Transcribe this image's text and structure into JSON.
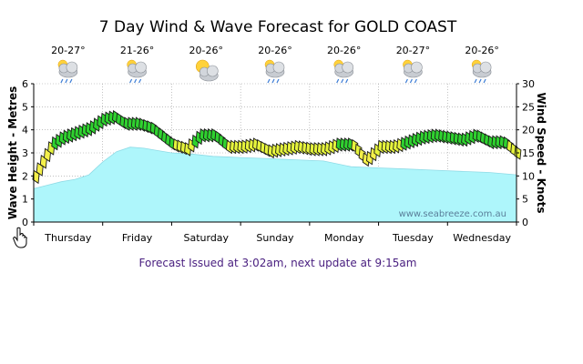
{
  "page": {
    "footer": "Forecast Issued at 3:02am, next update at 9:15am"
  },
  "chart_data": {
    "type": "area",
    "title": "7 Day Wind & Wave Forecast for GOLD COAST",
    "watermark": "www.seabreeze.com.au",
    "ylabel": "Wave Height - Metres",
    "y2label": "Wind Speed - Knots",
    "ylim": [
      0,
      6
    ],
    "y2lim": [
      0,
      30
    ],
    "yticks": [
      0,
      1,
      2,
      3,
      4,
      5,
      6
    ],
    "y2ticks": [
      0,
      5,
      10,
      15,
      20,
      25,
      30
    ],
    "grid": true,
    "days": [
      {
        "name": "Thursday",
        "temp": "20-27°",
        "icon": "storm-cloud-icon"
      },
      {
        "name": "Friday",
        "temp": "21-26°",
        "icon": "storm-cloud-icon"
      },
      {
        "name": "Saturday",
        "temp": "20-26°",
        "icon": "partly-cloudy-icon"
      },
      {
        "name": "Sunday",
        "temp": "20-26°",
        "icon": "storm-cloud-icon"
      },
      {
        "name": "Monday",
        "temp": "20-26°",
        "icon": "storm-cloud-icon"
      },
      {
        "name": "Tuesday",
        "temp": "20-27°",
        "icon": "storm-cloud-icon"
      },
      {
        "name": "Wednesday",
        "temp": "20-26°",
        "icon": "storm-cloud-icon"
      }
    ],
    "series": [
      {
        "name": "Wave Height",
        "axis": "left",
        "x": [
          0,
          0.2,
          0.4,
          0.6,
          0.8,
          1.0,
          1.2,
          1.4,
          1.6,
          1.8,
          2.0,
          2.3,
          2.6,
          3.0,
          3.4,
          3.8,
          4.2,
          4.6,
          5.0,
          5.4,
          5.8,
          6.2,
          6.6,
          7.0
        ],
        "values": [
          1.45,
          1.6,
          1.75,
          1.85,
          2.05,
          2.6,
          3.05,
          3.25,
          3.2,
          3.1,
          3.0,
          2.95,
          2.85,
          2.8,
          2.75,
          2.7,
          2.65,
          2.4,
          2.35,
          2.3,
          2.25,
          2.2,
          2.15,
          2.05
        ]
      },
      {
        "name": "Wind Speed",
        "axis": "right",
        "x": [
          0,
          0.1,
          0.25,
          0.4,
          0.6,
          0.8,
          1.0,
          1.15,
          1.3,
          1.5,
          1.7,
          2.0,
          2.2,
          2.4,
          2.6,
          2.8,
          3.0,
          3.2,
          3.4,
          3.6,
          3.8,
          4.0,
          4.2,
          4.4,
          4.6,
          4.8,
          5.0,
          5.2,
          5.4,
          5.6,
          5.8,
          6.0,
          6.2,
          6.4,
          6.6,
          6.8,
          7.0
        ],
        "values": [
          10,
          13,
          17,
          18.5,
          19.5,
          20.5,
          22.5,
          23,
          21.5,
          21.5,
          20.5,
          17,
          16,
          19,
          19,
          16.5,
          16.5,
          17,
          15.5,
          16,
          16.5,
          16,
          16,
          17,
          17,
          13.5,
          16.5,
          16.5,
          17.5,
          18.5,
          19,
          18.5,
          18,
          19,
          17.5,
          17.5,
          15
        ]
      }
    ]
  }
}
